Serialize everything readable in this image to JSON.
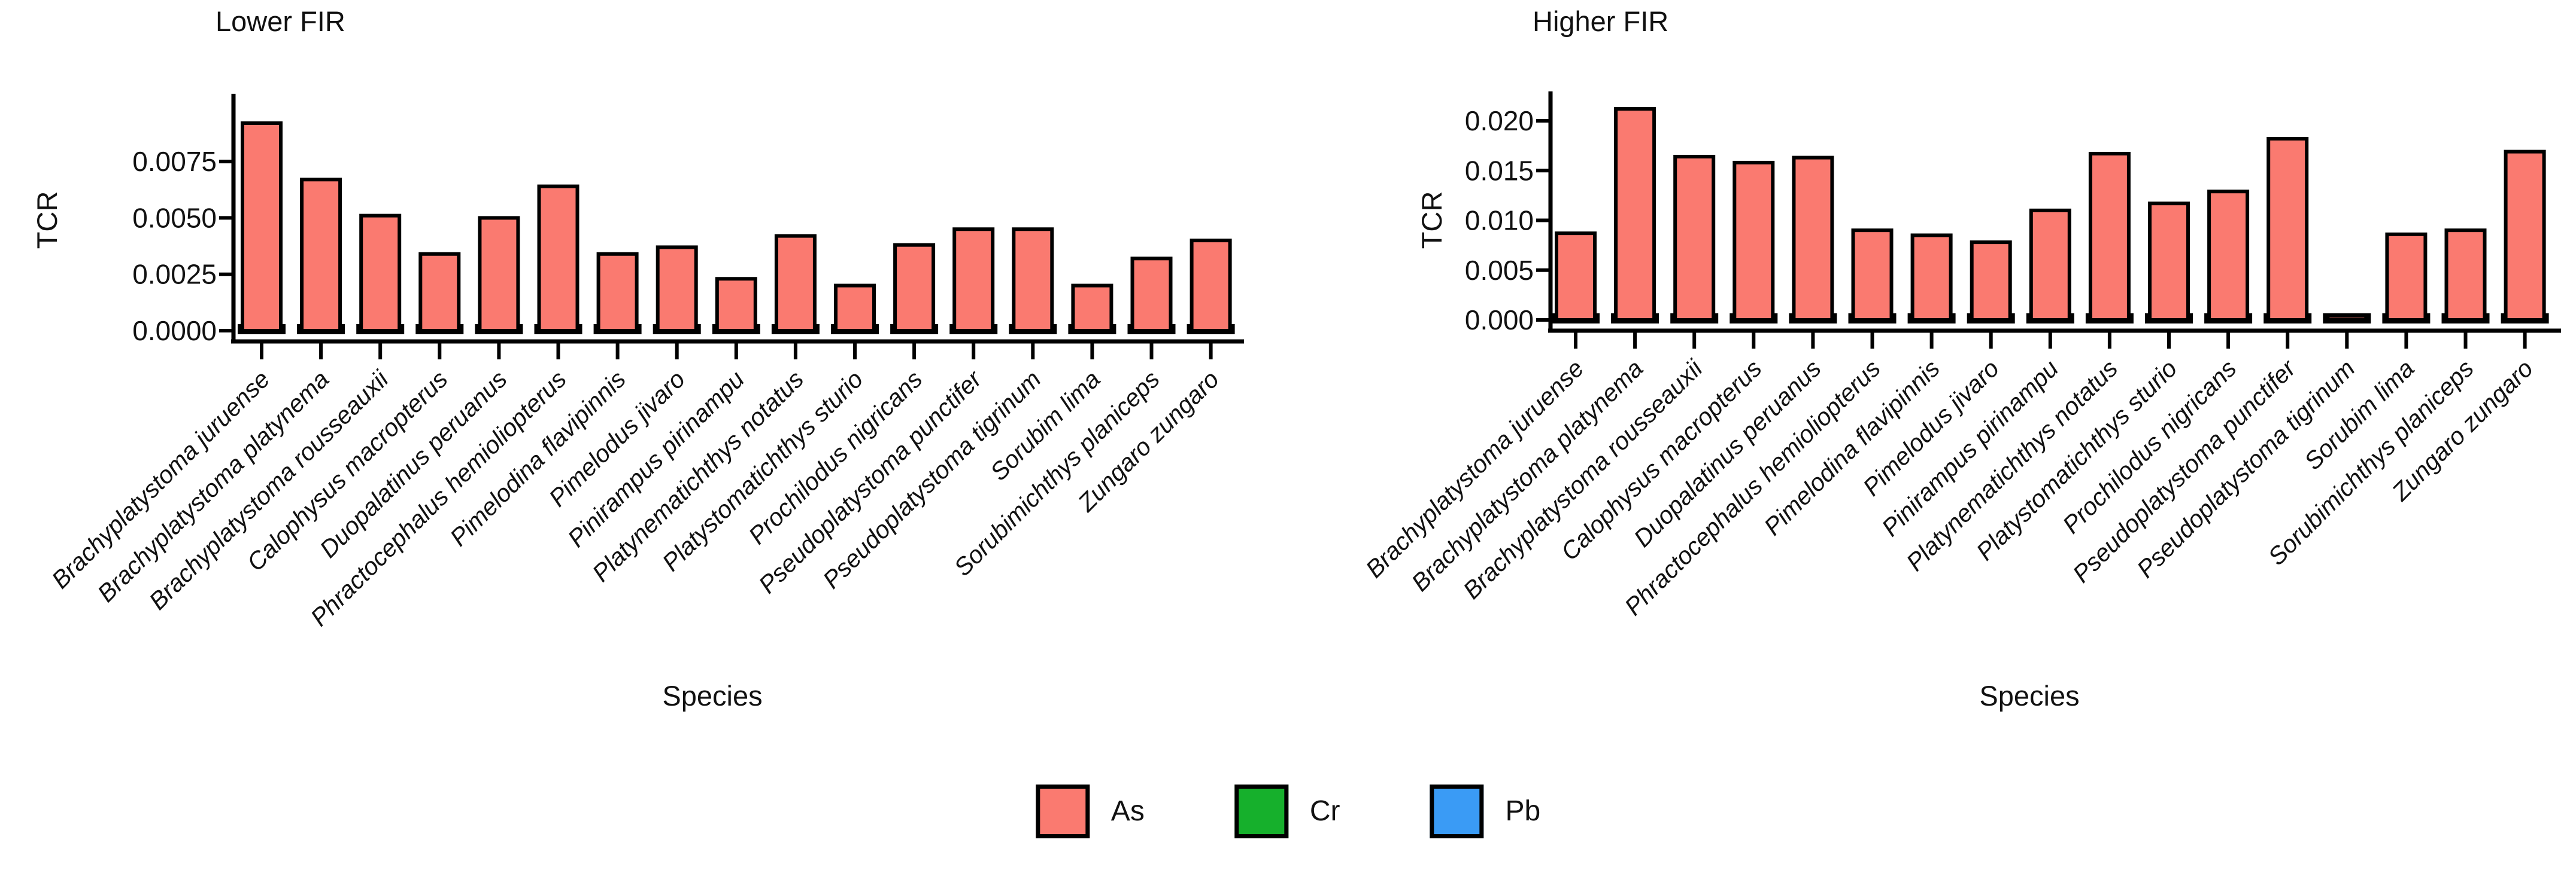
{
  "figure": {
    "background": "#ffffff",
    "bar_outline_color": "#000000"
  },
  "legend": {
    "position": "bottom-center",
    "items": [
      {
        "label": "As",
        "color": "#fa7a70"
      },
      {
        "label": "Cr",
        "color": "#16b02c"
      },
      {
        "label": "Pb",
        "color": "#3a9bf5"
      }
    ]
  },
  "chart_data": [
    {
      "type": "bar",
      "title": "Lower FIR",
      "xlabel": "Species",
      "ylabel": "TCR",
      "legend_position": "bottom",
      "grid": false,
      "ylim": [
        0,
        0.0096
      ],
      "ytick_values": [
        0,
        0.0025,
        0.005,
        0.0075
      ],
      "ytick_labels": [
        "0.0000",
        "0.0025",
        "0.0050",
        "0.0075"
      ],
      "categories": [
        "Brachyplatystoma juruense",
        "Brachyplatystoma platynema",
        "Brachyplatystoma rousseauxii",
        "Calophysus macropterus",
        "Duopalatinus peruanus",
        "Phractocephalus hemioliopterus",
        "Pimelodina flavipinnis",
        "Pimelodus jivaro",
        "Pinirampus pirinampu",
        "Platynematichthys notatus",
        "Platystomatichthys sturio",
        "Prochilodus nigricans",
        "Pseudoplatystoma punctifer",
        "Pseudoplatystoma tigrinum",
        "Sorubim lima",
        "Sorubimichthys planiceps",
        "Zungaro zungaro"
      ],
      "series": [
        {
          "name": "As",
          "color": "#fa7a70",
          "values": [
            0.0092,
            0.0067,
            0.0051,
            0.0034,
            0.005,
            0.0064,
            0.0034,
            0.0037,
            0.0023,
            0.0042,
            0.002,
            0.0038,
            0.0045,
            0.0045,
            0.002,
            0.0032,
            0.004
          ]
        },
        {
          "name": "Cr",
          "color": "#16b02c",
          "values": [
            0.0001,
            0.0001,
            0.0001,
            0.0001,
            0.0001,
            0.0001,
            0.0001,
            0.0001,
            0.0001,
            0.0001,
            0.0001,
            0.0001,
            0.0001,
            0.0001,
            0.0001,
            0.0001,
            0.0001
          ]
        },
        {
          "name": "Pb",
          "color": "#3a9bf5",
          "values": [
            0.0001,
            0.0001,
            0.0001,
            0.0001,
            0.0001,
            0.0001,
            0.0001,
            0.0001,
            0.0001,
            0.0001,
            0.0001,
            0.0001,
            0.0001,
            0.0001,
            0.0001,
            0.0001,
            0.0001
          ]
        }
      ]
    },
    {
      "type": "bar",
      "title": "Higher FIR",
      "xlabel": "Species",
      "ylabel": "TCR",
      "legend_position": "bottom",
      "grid": false,
      "ylim": [
        0,
        0.0214
      ],
      "ytick_values": [
        0,
        0.005,
        0.01,
        0.015,
        0.02
      ],
      "ytick_labels": [
        "0.000",
        "0.005",
        "0.010",
        "0.015",
        "0.020"
      ],
      "categories": [
        "Brachyplatystoma juruense",
        "Brachyplatystoma platynema",
        "Brachyplatystoma rousseauxii",
        "Calophysus macropterus",
        "Duopalatinus peruanus",
        "Phractocephalus hemioliopterus",
        "Pimelodina flavipinnis",
        "Pimelodus jivaro",
        "Pinirampus pirinampu",
        "Platynematichthys notatus",
        "Platystomatichthys sturio",
        "Prochilodus nigricans",
        "Pseudoplatystoma punctifer",
        "Pseudoplatystoma tigrinum",
        "Sorubim lima",
        "Sorubimichthys planiceps",
        "Zungaro zungaro"
      ],
      "series": [
        {
          "name": "As",
          "color": "#fa7a70",
          "values": [
            0.0087,
            0.0212,
            0.0164,
            0.0158,
            0.0163,
            0.009,
            0.0085,
            0.0078,
            0.011,
            0.0167,
            0.0117,
            0.0129,
            0.0182,
            0.0004,
            0.0086,
            0.009,
            0.0169
          ]
        },
        {
          "name": "Cr",
          "color": "#16b02c",
          "values": [
            0.0001,
            0.0001,
            0.0001,
            0.0001,
            0.0001,
            0.0001,
            0.0001,
            0.0001,
            0.0001,
            0.0001,
            0.0001,
            0.0001,
            0.0001,
            0.0001,
            0.0001,
            0.0001,
            0.0001
          ]
        },
        {
          "name": "Pb",
          "color": "#3a9bf5",
          "values": [
            0.0001,
            0.0001,
            0.0001,
            0.0001,
            0.0001,
            0.0001,
            0.0001,
            0.0001,
            0.0001,
            0.0001,
            0.0001,
            0.0001,
            0.0001,
            0.0001,
            0.0001,
            0.0001,
            0.0001
          ]
        }
      ]
    }
  ]
}
